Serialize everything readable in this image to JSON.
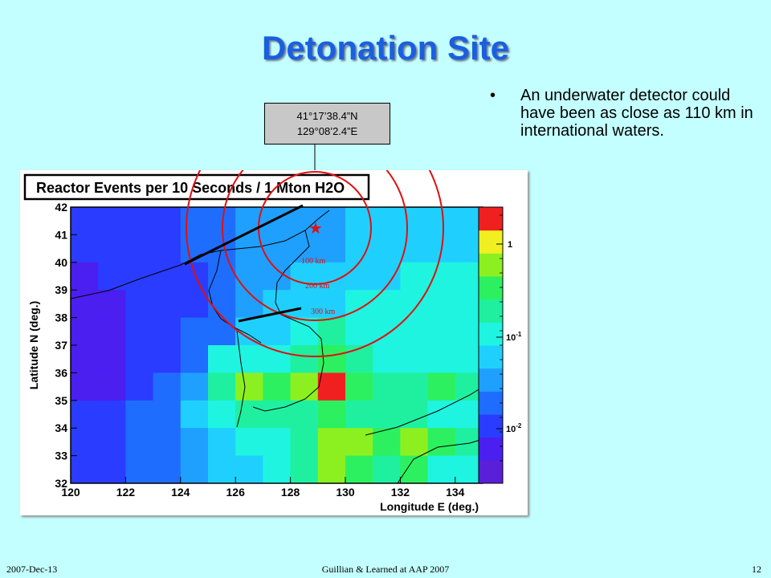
{
  "slide": {
    "title": "Detonation Site",
    "bullet": "An underwater detector could have been as close as 110 km in international waters.",
    "coordinates": [
      "41°17’38.4”N",
      "129°08’2.4”E"
    ],
    "footer_left": "2007-Dec-13",
    "footer_center": "Guillian & Learned at AAP 2007",
    "footer_right": "12"
  },
  "chart_data": {
    "type": "heatmap",
    "title": "Reactor Events per 10 Seconds / 1 Mton H2O",
    "xlabel": "Longitude E (deg.)",
    "ylabel": "Latitude N (deg.)",
    "x_ticks": [
      "120",
      "122",
      "124",
      "126",
      "128",
      "130",
      "132",
      "134"
    ],
    "y_ticks": [
      "32",
      "33",
      "34",
      "35",
      "36",
      "37",
      "38",
      "39",
      "40",
      "41",
      "42"
    ],
    "xlim": [
      120,
      135
    ],
    "ylim": [
      32,
      42
    ],
    "colorbar": {
      "scale": "log",
      "ticks": [
        "1",
        "10^-1",
        "10^-2"
      ]
    },
    "range_labels": [
      "100 km",
      "200 km",
      "300 km"
    ],
    "grid": [
      [
        2,
        2,
        2,
        2,
        3,
        3,
        4,
        4,
        4,
        4,
        5,
        5,
        5,
        5,
        5
      ],
      [
        2,
        2,
        2,
        2,
        3,
        3,
        4,
        4,
        4,
        4,
        5,
        5,
        5,
        5,
        5
      ],
      [
        1,
        2,
        2,
        2,
        2,
        3,
        4,
        4,
        5,
        5,
        5,
        5,
        6,
        6,
        6
      ],
      [
        1,
        1,
        2,
        2,
        2,
        3,
        4,
        5,
        5,
        5,
        6,
        6,
        6,
        6,
        6
      ],
      [
        1,
        1,
        2,
        2,
        3,
        3,
        5,
        5,
        6,
        7,
        6,
        6,
        6,
        6,
        6
      ],
      [
        1,
        1,
        2,
        2,
        3,
        6,
        6,
        6,
        7,
        8,
        7,
        6,
        6,
        6,
        6
      ],
      [
        1,
        1,
        2,
        3,
        4,
        7,
        9,
        8,
        9,
        11,
        8,
        7,
        7,
        8,
        7
      ],
      [
        2,
        2,
        3,
        3,
        5,
        6,
        7,
        7,
        7,
        8,
        7,
        7,
        7,
        6,
        6
      ],
      [
        2,
        2,
        3,
        3,
        4,
        5,
        6,
        6,
        7,
        9,
        9,
        8,
        9,
        8,
        7
      ],
      [
        2,
        2,
        3,
        3,
        4,
        5,
        5,
        6,
        7,
        9,
        8,
        7,
        8,
        6,
        6
      ]
    ]
  }
}
